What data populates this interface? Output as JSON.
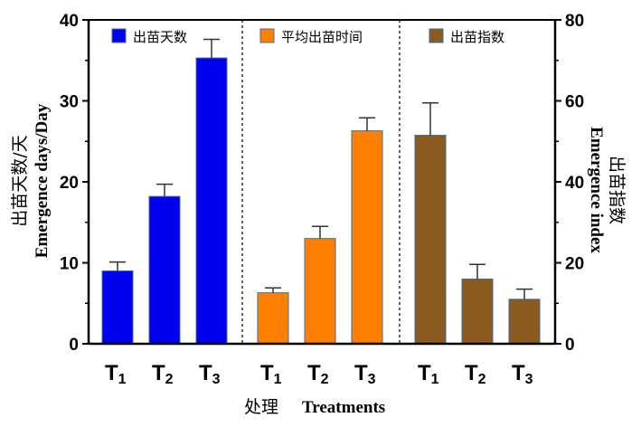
{
  "chart_data": {
    "type": "bar",
    "xlabel_cn": "处理",
    "xlabel_en": "Treatments",
    "ylabel_left_cn": "出苗天数/天",
    "ylabel_left_en": "Emergence days/Day",
    "ylabel_right_cn": "出苗指数",
    "ylabel_right_en": "Emergence index",
    "ylim_left": [
      0,
      40
    ],
    "ylim_right": [
      0,
      80
    ],
    "yticks_left": [
      "0",
      "10",
      "20",
      "30",
      "40"
    ],
    "yticks_right": [
      "0",
      "20",
      "40",
      "60",
      "80"
    ],
    "grid": false,
    "groups": [
      {
        "name": "出苗天数",
        "axis": "left",
        "color": "#0000ee",
        "categories": [
          {
            "main": "T",
            "sub": "1"
          },
          {
            "main": "T",
            "sub": "2"
          },
          {
            "main": "T",
            "sub": "3"
          }
        ],
        "values": [
          9.0,
          18.2,
          35.3
        ],
        "errors": [
          1.1,
          1.5,
          2.3
        ]
      },
      {
        "name": "平均出苗时间",
        "axis": "left",
        "color": "#ff8000",
        "categories": [
          {
            "main": "T",
            "sub": "1"
          },
          {
            "main": "T",
            "sub": "2"
          },
          {
            "main": "T",
            "sub": "3"
          }
        ],
        "values": [
          6.3,
          13.0,
          26.3
        ],
        "errors": [
          0.6,
          1.5,
          1.6
        ]
      },
      {
        "name": "出苗指数",
        "axis": "right",
        "color": "#8b5a1e",
        "categories": [
          {
            "main": "T",
            "sub": "1"
          },
          {
            "main": "T",
            "sub": "2"
          },
          {
            "main": "T",
            "sub": "3"
          }
        ],
        "values": [
          51.5,
          16.0,
          11.0
        ],
        "errors": [
          8.0,
          3.6,
          2.5
        ]
      }
    ]
  }
}
